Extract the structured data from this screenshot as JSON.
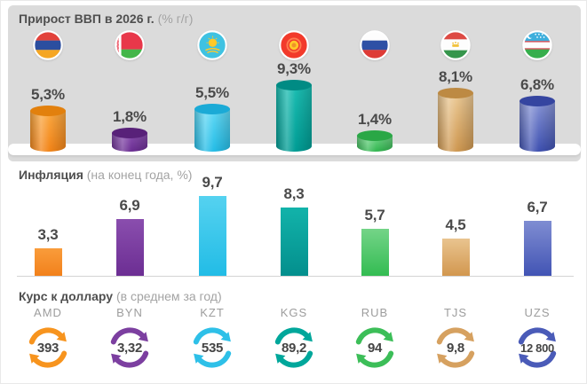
{
  "sections": {
    "gdp": {
      "title": "Прирост ВВП в 2026 г.",
      "subtitle": "(% г/г)"
    },
    "inflation": {
      "title": "Инфляция",
      "subtitle": "(на конец года, %)"
    },
    "fx": {
      "title": "Курс к доллару",
      "subtitle": "(в среднем за год)"
    }
  },
  "colors": {
    "panel_bg": "#DBDBDB",
    "title_text": "#4F4F4F",
    "subtitle_text": "#A3A3A3",
    "value_text": "#4A4A4A"
  },
  "countries": [
    {
      "id": "armenia",
      "gdp": "5,3%",
      "inflation": "3,3",
      "currency": "AMD",
      "rate": "393",
      "accent": "#F7941E",
      "cyl_top": "#FBA943",
      "cyl_bottom": "#F28418",
      "cyl_ellipse": "#E2800D",
      "bar_top": "#F99C3B",
      "bar_bottom": "#F2811B"
    },
    {
      "id": "belarus",
      "gdp": "1,8%",
      "inflation": "6,9",
      "currency": "BYN",
      "rate": "3,32",
      "accent": "#7C3FA0",
      "cyl_top": "#8B51B0",
      "cyl_bottom": "#6A2D92",
      "cyl_ellipse": "#582179",
      "bar_top": "#8A4EAE",
      "bar_bottom": "#6C2E93"
    },
    {
      "id": "kazakhstan",
      "gdp": "5,5%",
      "inflation": "9,7",
      "currency": "KZT",
      "rate": "535",
      "accent": "#2EC0E8",
      "cyl_top": "#64DAF6",
      "cyl_bottom": "#24BCE6",
      "cyl_ellipse": "#1BAAD6",
      "bar_top": "#55D2F0",
      "bar_bottom": "#22BCE6"
    },
    {
      "id": "kyrgyzstan",
      "gdp": "9,3%",
      "inflation": "8,3",
      "currency": "KGS",
      "rate": "89,2",
      "accent": "#00A79B",
      "cyl_top": "#1CBDB2",
      "cyl_bottom": "#009C94",
      "cyl_ellipse": "#008B84",
      "bar_top": "#12B3AA",
      "bar_bottom": "#038F8D"
    },
    {
      "id": "russia",
      "gdp": "1,4%",
      "inflation": "5,7",
      "currency": "RUB",
      "rate": "94",
      "accent": "#3CBE58",
      "cyl_top": "#74D78A",
      "cyl_bottom": "#31B64F",
      "cyl_ellipse": "#2AA746",
      "bar_top": "#74D488",
      "bar_bottom": "#33BC52"
    },
    {
      "id": "tajikistan",
      "gdp": "8,1%",
      "inflation": "4,5",
      "currency": "TJS",
      "rate": "9,8",
      "accent": "#D6A160",
      "cyl_top": "#EBC995",
      "cyl_bottom": "#CE9750",
      "cyl_ellipse": "#BD8A43",
      "bar_top": "#E9C48F",
      "bar_bottom": "#D2974F"
    },
    {
      "id": "uzbekistan",
      "gdp": "6,8%",
      "inflation": "6,7",
      "currency": "UZS",
      "rate": "12 800",
      "accent": "#4A5BB8",
      "cyl_top": "#8895D6",
      "cyl_bottom": "#3E50B0",
      "cyl_ellipse": "#3545A0",
      "bar_top": "#7F8DD2",
      "bar_bottom": "#4254B4"
    }
  ],
  "chart_data": [
    {
      "type": "bar",
      "title": "Прирост ВВП в 2026 г. (% г/г)",
      "categories": [
        "Армения",
        "Беларусь",
        "Казахстан",
        "Кыргызстан",
        "Россия",
        "Таджикистан",
        "Узбекистан"
      ],
      "values": [
        5.3,
        1.8,
        5.5,
        9.3,
        1.4,
        8.1,
        6.8
      ],
      "ylabel": "% г/г",
      "legend": "none",
      "grid": false
    },
    {
      "type": "bar",
      "title": "Инфляция (на конец года, %)",
      "categories": [
        "Армения",
        "Беларусь",
        "Казахстан",
        "Кыргызстан",
        "Россия",
        "Таджикистан",
        "Узбекистан"
      ],
      "values": [
        3.3,
        6.9,
        9.7,
        8.3,
        5.7,
        4.5,
        6.7
      ],
      "ylabel": "%",
      "legend": "none",
      "grid": false
    },
    {
      "type": "table",
      "title": "Курс к доллару (в среднем за год)",
      "categories": [
        "AMD",
        "BYN",
        "KZT",
        "KGS",
        "RUB",
        "TJS",
        "UZS"
      ],
      "values": [
        393,
        3.32,
        535,
        89.2,
        94,
        9.8,
        12800
      ]
    }
  ]
}
